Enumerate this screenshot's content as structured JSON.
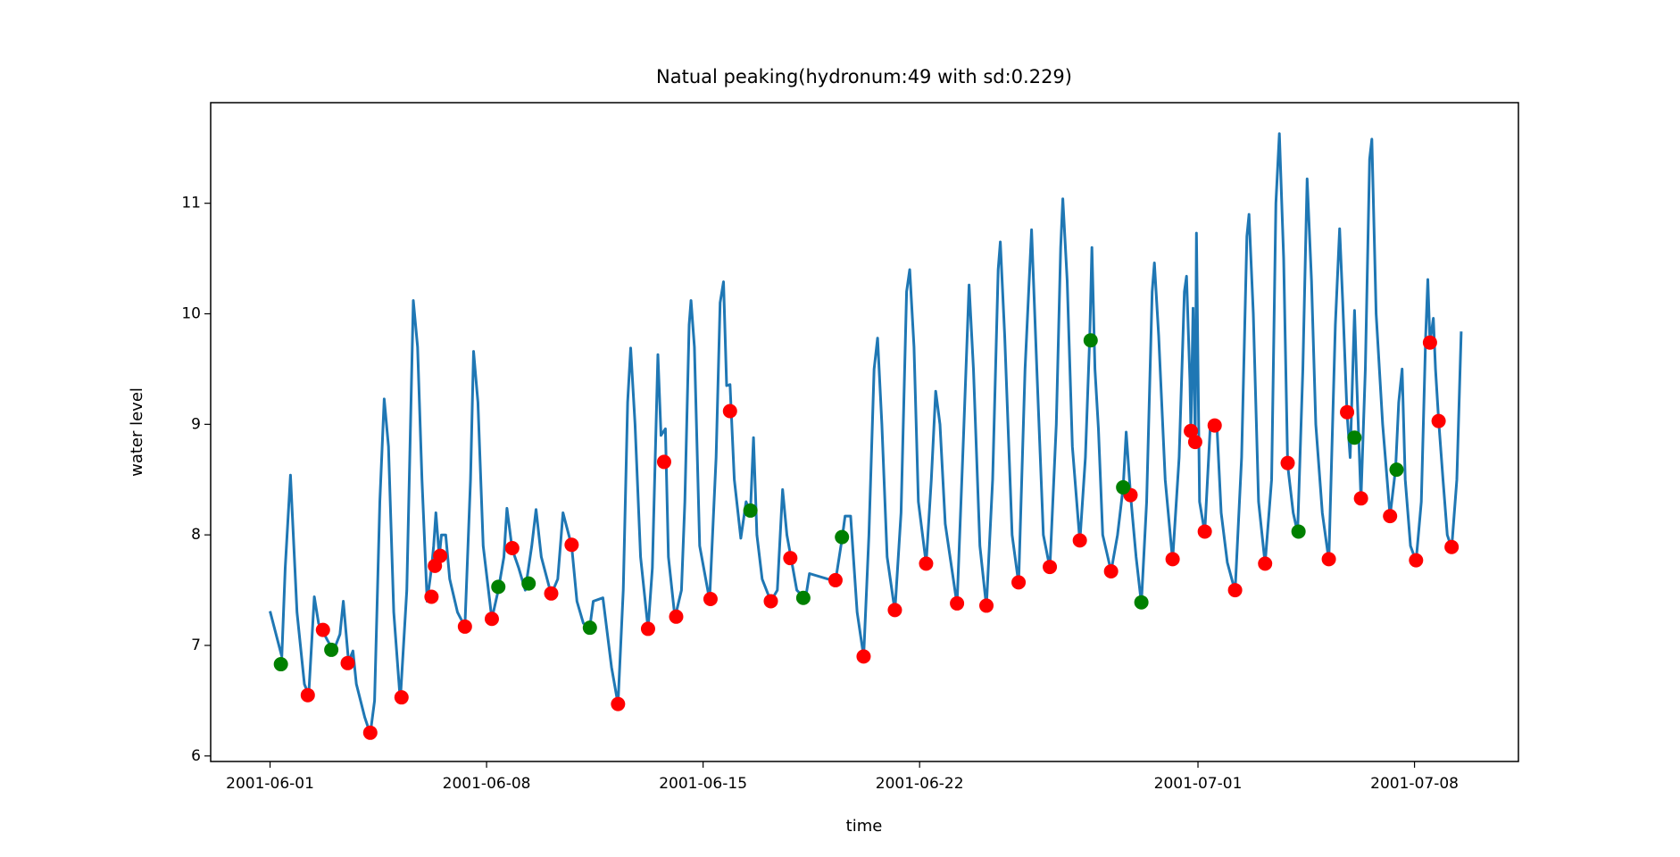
{
  "chart_data": {
    "type": "line",
    "title": "Natual peaking(hydronum:49 with sd:0.229)",
    "x_label": "time",
    "y_label": "water level",
    "xlim": [
      -1.92,
      40.36
    ],
    "ylim": [
      5.95,
      11.91
    ],
    "xticks": [
      {
        "value": 0,
        "label": "2001-06-01"
      },
      {
        "value": 7,
        "label": "2001-06-08"
      },
      {
        "value": 14,
        "label": "2001-06-15"
      },
      {
        "value": 21,
        "label": "2001-06-22"
      },
      {
        "value": 30,
        "label": "2001-07-01"
      },
      {
        "value": 37,
        "label": "2001-07-08"
      }
    ],
    "yticks": [
      6,
      7,
      8,
      9,
      10,
      11
    ],
    "grid": false,
    "series": [
      {
        "type": "line",
        "color": "#1f77b4",
        "x": [
          0,
          0.38,
          0.49,
          0.66,
          0.87,
          1.11,
          1.25,
          1.43,
          1.57,
          1.85,
          2.05,
          2.26,
          2.37,
          2.54,
          2.68,
          2.79,
          3.06,
          3.24,
          3.38,
          3.55,
          3.69,
          3.83,
          4.0,
          4.21,
          4.42,
          4.63,
          4.77,
          4.91,
          5.08,
          5.22,
          5.29,
          5.36,
          5.47,
          5.54,
          5.68,
          5.81,
          6.06,
          6.3,
          6.48,
          6.58,
          6.72,
          6.89,
          7.17,
          7.38,
          7.56,
          7.66,
          7.83,
          8.04,
          8.25,
          8.46,
          8.6,
          8.77,
          9.09,
          9.3,
          9.47,
          9.75,
          9.92,
          10.13,
          10.34,
          10.45,
          10.76,
          11.04,
          11.25,
          11.42,
          11.56,
          11.66,
          11.8,
          11.98,
          12.22,
          12.36,
          12.54,
          12.64,
          12.78,
          12.88,
          13.09,
          13.3,
          13.41,
          13.55,
          13.61,
          13.72,
          13.89,
          14.21,
          14.42,
          14.55,
          14.66,
          14.76,
          14.87,
          15.01,
          15.22,
          15.39,
          15.53,
          15.63,
          15.74,
          15.91,
          16.19,
          16.4,
          16.57,
          16.71,
          16.85,
          17.03,
          17.31,
          17.44,
          18.28,
          18.49,
          18.59,
          18.77,
          18.98,
          19.19,
          19.36,
          19.53,
          19.64,
          19.78,
          19.95,
          20.2,
          20.4,
          20.58,
          20.68,
          20.82,
          20.96,
          21.21,
          21.38,
          21.52,
          21.66,
          21.83,
          22.21,
          22.42,
          22.6,
          22.74,
          22.95,
          23.16,
          23.36,
          23.54,
          23.61,
          23.75,
          23.99,
          24.2,
          24.41,
          24.62,
          24.79,
          25.0,
          25.21,
          25.42,
          25.56,
          25.63,
          25.77,
          25.94,
          26.18,
          26.36,
          26.5,
          26.57,
          26.67,
          26.78,
          26.92,
          27.19,
          27.4,
          27.58,
          27.68,
          27.82,
          28.0,
          28.17,
          28.34,
          28.52,
          28.59,
          28.73,
          28.94,
          29.18,
          29.39,
          29.56,
          29.63,
          29.74,
          29.77,
          29.84,
          29.91,
          29.95,
          30.05,
          30.22,
          30.4,
          30.61,
          30.75,
          30.95,
          31.2,
          31.41,
          31.58,
          31.65,
          31.79,
          31.96,
          32.17,
          32.38,
          32.52,
          32.63,
          32.77,
          32.9,
          33.08,
          33.22,
          33.39,
          33.53,
          33.67,
          33.81,
          34.02,
          34.23,
          34.44,
          34.58,
          34.68,
          34.82,
          34.92,
          35.06,
          35.13,
          35.27,
          35.41,
          35.55,
          35.62,
          35.76,
          35.97,
          36.21,
          36.39,
          36.49,
          36.6,
          36.7,
          36.87,
          37.05,
          37.22,
          37.36,
          37.43,
          37.5,
          37.61,
          37.68,
          37.78,
          37.92,
          38.06,
          38.2,
          38.37,
          38.51
        ],
        "values": [
          7.31,
          6.9,
          7.7,
          8.54,
          7.3,
          6.65,
          6.55,
          7.44,
          7.2,
          7.05,
          6.95,
          7.1,
          7.4,
          6.85,
          6.95,
          6.65,
          6.35,
          6.2,
          6.5,
          8.3,
          9.23,
          8.8,
          7.3,
          6.5,
          7.5,
          10.12,
          9.7,
          8.5,
          7.4,
          7.7,
          7.9,
          8.2,
          7.8,
          8.0,
          8.0,
          7.6,
          7.3,
          7.17,
          8.5,
          9.66,
          9.2,
          7.9,
          7.24,
          7.5,
          7.8,
          8.24,
          7.87,
          7.7,
          7.5,
          7.9,
          8.23,
          7.8,
          7.46,
          7.6,
          8.2,
          7.9,
          7.4,
          7.2,
          7.17,
          7.4,
          7.43,
          6.8,
          6.47,
          7.5,
          9.2,
          9.69,
          9.0,
          7.8,
          7.15,
          7.7,
          9.63,
          8.9,
          8.96,
          7.8,
          7.25,
          7.5,
          8.3,
          9.9,
          10.12,
          9.7,
          7.9,
          7.41,
          8.7,
          10.1,
          10.29,
          9.35,
          9.36,
          8.5,
          7.97,
          8.3,
          8.2,
          8.88,
          8.0,
          7.6,
          7.4,
          7.5,
          8.41,
          8.0,
          7.78,
          7.5,
          7.42,
          7.65,
          7.58,
          7.96,
          8.17,
          8.17,
          7.3,
          6.9,
          8.0,
          9.5,
          9.78,
          9.0,
          7.8,
          7.31,
          8.2,
          10.2,
          10.4,
          9.7,
          8.3,
          7.74,
          8.5,
          9.3,
          9.0,
          8.1,
          7.37,
          8.9,
          10.26,
          9.5,
          7.9,
          7.35,
          8.5,
          10.4,
          10.65,
          9.8,
          8.0,
          7.56,
          9.5,
          10.76,
          9.5,
          8.0,
          7.7,
          9.0,
          10.6,
          11.04,
          10.3,
          8.8,
          7.94,
          8.7,
          9.8,
          10.6,
          9.5,
          8.96,
          8.0,
          7.67,
          8.0,
          8.43,
          8.93,
          8.36,
          7.8,
          7.38,
          8.3,
          10.2,
          10.46,
          9.8,
          8.5,
          7.77,
          8.7,
          10.2,
          10.34,
          9.4,
          8.93,
          10.05,
          8.84,
          10.73,
          8.3,
          8.02,
          9.0,
          8.99,
          8.2,
          7.75,
          7.49,
          8.7,
          10.7,
          10.9,
          10.0,
          8.3,
          7.74,
          8.5,
          11.0,
          11.63,
          10.5,
          8.63,
          8.2,
          8.02,
          9.5,
          11.22,
          10.3,
          9.0,
          8.2,
          7.77,
          9.9,
          10.77,
          10.1,
          9.1,
          8.7,
          10.03,
          9.4,
          8.32,
          9.5,
          11.4,
          11.58,
          10.0,
          9.0,
          8.17,
          8.6,
          9.2,
          9.5,
          8.5,
          7.9,
          7.76,
          8.3,
          9.8,
          10.31,
          9.74,
          9.96,
          9.5,
          9.04,
          8.5,
          8.0,
          7.88,
          8.5,
          9.84
        ]
      },
      {
        "type": "scatter",
        "color": "red",
        "x": [
          1.22,
          1.71,
          2.51,
          3.24,
          4.25,
          5.22,
          5.33,
          5.5,
          6.3,
          7.17,
          7.83,
          9.09,
          9.75,
          11.25,
          12.22,
          12.74,
          13.13,
          14.24,
          14.87,
          16.19,
          16.82,
          18.28,
          19.19,
          20.2,
          21.21,
          22.21,
          23.16,
          24.2,
          25.21,
          26.18,
          27.19,
          27.82,
          29.18,
          29.77,
          29.91,
          30.22,
          30.54,
          31.2,
          32.17,
          32.9,
          34.23,
          34.82,
          35.27,
          36.21,
          37.05,
          37.5,
          37.78,
          38.2
        ],
        "values": [
          6.55,
          7.14,
          6.84,
          6.21,
          6.53,
          7.44,
          7.72,
          7.81,
          7.17,
          7.24,
          7.88,
          7.47,
          7.91,
          6.47,
          7.15,
          8.66,
          7.26,
          7.42,
          9.12,
          7.4,
          7.79,
          7.59,
          6.9,
          7.32,
          7.74,
          7.38,
          7.36,
          7.57,
          7.71,
          7.95,
          7.67,
          8.36,
          7.78,
          8.94,
          8.84,
          8.03,
          8.99,
          7.5,
          7.74,
          8.65,
          7.78,
          9.11,
          8.33,
          8.17,
          7.77,
          9.74,
          9.03,
          7.89
        ]
      },
      {
        "type": "scatter",
        "color": "green",
        "x": [
          0.35,
          1.98,
          7.38,
          8.36,
          10.34,
          15.53,
          17.24,
          18.49,
          26.53,
          27.58,
          28.17,
          33.25,
          35.06,
          36.42
        ],
        "values": [
          6.83,
          6.96,
          7.53,
          7.56,
          7.16,
          8.22,
          7.43,
          7.98,
          9.76,
          8.43,
          7.39,
          8.03,
          8.88,
          8.59
        ]
      }
    ]
  }
}
